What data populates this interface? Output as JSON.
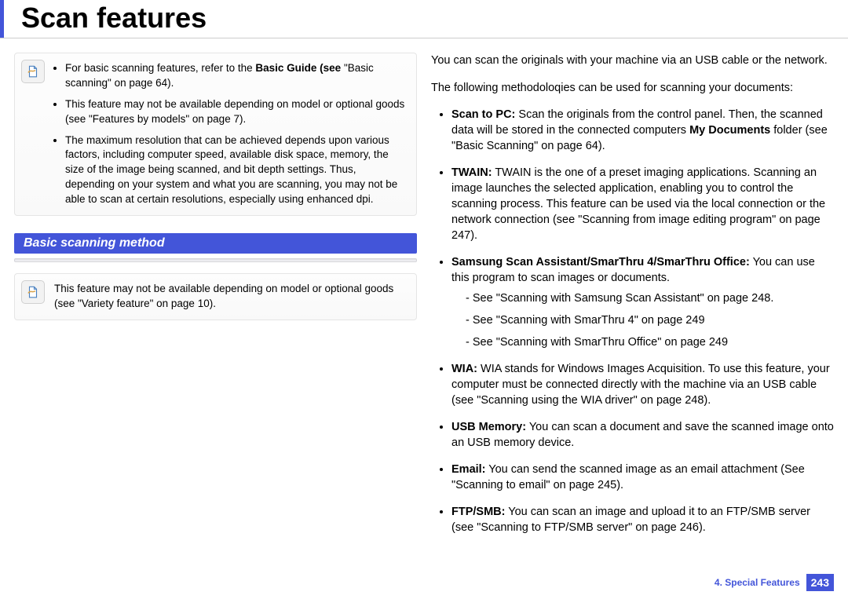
{
  "page_title": "Scan features",
  "colors": {
    "accent": "#4355d9",
    "header_text": "#ffffff",
    "note_border": "#e5e5e5",
    "footer_text": "#4355d9"
  },
  "left": {
    "note1": {
      "items": [
        {
          "html": "For basic scanning features, refer to the <b>Basic Guide (see</b> \"Basic scanning\" on page 64)."
        },
        {
          "html": "This feature may not be available depending on model or optional goods (see \"Features by models\" on page 7)."
        },
        {
          "html": "The maximum resolution that can be achieved depends upon various factors, including computer speed, available disk space, memory, the size of the image being scanned, and bit depth settings. Thus, depending on your system and what you are scanning, you may not be able to scan at certain resolutions, especially using enhanced dpi."
        }
      ]
    },
    "section_title": "Basic scanning method",
    "note2": {
      "text": "This feature may not be available depending on model or optional goods (see \"Variety feature\" on page 10)."
    }
  },
  "right": {
    "intro1": "You can scan the originals with your machine via an USB cable or the network.",
    "intro2": "The following methodoloqies can be used for scanning your documents:",
    "methods": [
      {
        "html": "<b>Scan to PC:</b> Scan the originals from the control panel. Then, the scanned data will be stored in the connected computers <b>My Documents</b> folder (see \"Basic Scanning\" on page 64)."
      },
      {
        "html": "<b>TWAIN:</b> TWAIN is the one of a preset imaging applications. Scanning an image launches the selected application, enabling you to control the scanning process. This feature can be used via the local connection or the network connection (see \"Scanning from image editing program\" on page 247)."
      },
      {
        "html": "<b>Samsung Scan Assistant/SmarThru 4/SmarThru Office:</b> You can use this program to scan images or documents.",
        "sub": [
          "See \"Scanning with Samsung Scan Assistant\" on page 248.",
          "See \"Scanning with SmarThru 4\" on page 249",
          "See \"Scanning with SmarThru Office\" on page 249"
        ]
      },
      {
        "html": "<b>WIA:</b> WIA stands for Windows Images Acquisition. To use this feature, your computer must be connected directly with the machine via an USB cable (see \"Scanning using the WIA driver\" on page 248)."
      },
      {
        "html": "<b>USB Memory:</b> You can scan a document and save the scanned image onto an USB memory device."
      },
      {
        "html": "<b>Email:</b> You can send the scanned image as an email attachment (See \"Scanning to email\" on page 245)."
      },
      {
        "html": "<b>FTP/SMB:</b> You can scan an image and upload it to an FTP/SMB server (see \"Scanning to FTP/SMB server\" on page 246)."
      }
    ]
  },
  "footer": {
    "chapter": "4.  Special Features",
    "page": "243"
  }
}
